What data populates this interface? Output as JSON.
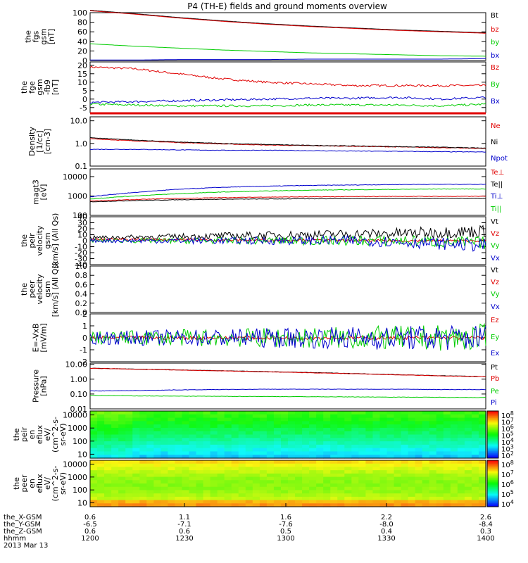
{
  "title": "P4 (TH-E) fields and ground moments overview",
  "colors": {
    "black": "#000000",
    "red": "#e00000",
    "green": "#00cc00",
    "blue": "#0000cc"
  },
  "chart_data": [
    {
      "type": "line",
      "id": "fgs",
      "ylabel": [
        "the",
        "fgs",
        "gsm",
        "[nT]"
      ],
      "ylim": [
        0,
        100
      ],
      "yticks": [
        0,
        20,
        40,
        60,
        80,
        100
      ],
      "series": [
        {
          "name": "Bt",
          "color": "red-black",
          "values": [
            105,
            98,
            90,
            83,
            77,
            72,
            68,
            64,
            61,
            58
          ]
        },
        {
          "name": "bz",
          "color": "red",
          "values": [
            104,
            97,
            89,
            82,
            76,
            71,
            67,
            63,
            60,
            57
          ]
        },
        {
          "name": "by",
          "color": "green",
          "values": [
            35,
            30,
            26,
            22,
            19,
            16,
            14,
            12,
            10,
            9
          ]
        },
        {
          "name": "bx",
          "color": "blue",
          "values": [
            1,
            1,
            2,
            2,
            2,
            3,
            3,
            3,
            3,
            4
          ]
        }
      ],
      "legend": [
        "Bt",
        "bz",
        "by",
        "bx"
      ]
    },
    {
      "type": "line",
      "id": "fge",
      "ylabel": [
        "the",
        "fge",
        "gsm",
        "-fb9",
        "[nT]"
      ],
      "ylim": [
        -8,
        22
      ],
      "yticks": [
        -5,
        0,
        5,
        10,
        15,
        20
      ],
      "series": [
        {
          "name": "Bz",
          "color": "red",
          "values": [
            19,
            18,
            15,
            12,
            10,
            9,
            8,
            8,
            8,
            8
          ]
        },
        {
          "name": "By",
          "color": "green",
          "values": [
            -3,
            -3.5,
            -4,
            -4,
            -4,
            -3.5,
            -3.5,
            -3.5,
            -4,
            -3
          ]
        },
        {
          "name": "Bx",
          "color": "blue",
          "values": [
            -2,
            -1.5,
            -1,
            -0.5,
            0,
            0.5,
            0.5,
            1,
            0,
            1
          ]
        }
      ],
      "legend": [
        "Bz",
        "By",
        "Bx"
      ]
    },
    {
      "type": "line",
      "id": "density",
      "yscale": "log",
      "ylabel": [
        "Density",
        "[1/cc]",
        "[cm-3]"
      ],
      "ylim": [
        0.1,
        15
      ],
      "yticks": [
        "0.1",
        "1.0",
        "10.0"
      ],
      "series": [
        {
          "name": "Ne",
          "color": "red",
          "values": [
            1.6,
            1.3,
            1.1,
            0.95,
            0.85,
            0.8,
            0.75,
            0.7,
            0.65,
            0.6
          ]
        },
        {
          "name": "Ni",
          "color": "black",
          "values": [
            1.8,
            1.4,
            1.15,
            1.0,
            0.9,
            0.82,
            0.78,
            0.72,
            0.68,
            0.62
          ]
        },
        {
          "name": "Npot",
          "color": "blue",
          "values": [
            0.55,
            0.55,
            0.52,
            0.5,
            0.5,
            0.48,
            0.46,
            0.45,
            0.43,
            0.42
          ]
        }
      ],
      "legend": [
        "Ne",
        "Ni",
        "Npot"
      ]
    },
    {
      "type": "line",
      "id": "temp",
      "yscale": "log",
      "ylabel": [
        "magt3",
        "[eV]"
      ],
      "ylim": [
        100,
        25000
      ],
      "yticks": [
        "100",
        "1000",
        "10000"
      ],
      "series": [
        {
          "name": "Te⊥",
          "color": "red",
          "values": [
            550,
            650,
            750,
            820,
            880,
            900,
            930,
            950,
            950,
            960
          ]
        },
        {
          "name": "Te||",
          "color": "black",
          "values": [
            500,
            580,
            640,
            680,
            700,
            720,
            740,
            740,
            750,
            750
          ]
        },
        {
          "name": "Ti⊥",
          "color": "blue",
          "values": [
            900,
            1500,
            2200,
            2800,
            3200,
            3500,
            3700,
            3900,
            4000,
            4000
          ]
        },
        {
          "name": "Ti||",
          "color": "green",
          "values": [
            700,
            1000,
            1300,
            1600,
            1800,
            2000,
            2100,
            2200,
            2300,
            2300
          ]
        }
      ],
      "legend": [
        "Te⊥",
        "Te||",
        "Ti⊥",
        "Ti||"
      ]
    },
    {
      "type": "line",
      "id": "peir_vel",
      "ylabel": [
        "the",
        "peir",
        "velocity",
        "gsm",
        "[km/s] (All Qs)"
      ],
      "ylim": [
        -40,
        40
      ],
      "yticks": [
        -40,
        -30,
        -20,
        -10,
        0,
        10,
        20,
        30,
        40
      ],
      "series": [
        {
          "name": "Vt",
          "color": "black",
          "values": [
            5,
            6,
            7,
            8,
            9,
            10,
            11,
            12,
            14,
            16
          ]
        },
        {
          "name": "Vz",
          "color": "red",
          "values": [
            2,
            2,
            2,
            1,
            1,
            1,
            0,
            0,
            0,
            0
          ]
        },
        {
          "name": "Vy",
          "color": "green",
          "values": [
            0,
            0,
            0,
            0,
            0,
            0,
            0,
            0,
            -2,
            -4
          ]
        },
        {
          "name": "Vx",
          "color": "blue",
          "values": [
            0,
            0,
            0,
            0,
            0,
            0,
            0,
            -2,
            -5,
            -8
          ]
        }
      ],
      "legend": [
        "Vt",
        "Vz",
        "Vy",
        "Vx"
      ]
    },
    {
      "type": "line",
      "id": "peer_vel",
      "ylabel": [
        "the",
        "peer",
        "velocity",
        "gsm",
        "[km/s] (All Qs)"
      ],
      "ylim": [
        0,
        1
      ],
      "yticks": [
        "0.0",
        "0.2",
        "0.4",
        "0.6",
        "0.8",
        "1.0"
      ],
      "series": [],
      "legend": [
        "Vt",
        "Vz",
        "Vy",
        "Vx"
      ]
    },
    {
      "type": "line",
      "id": "efield",
      "ylabel": [
        "E=-VxB",
        "[mV/m]"
      ],
      "ylim": [
        -2,
        2
      ],
      "yticks": [
        -2,
        -1,
        0,
        1,
        2
      ],
      "series": [
        {
          "name": "Ez",
          "color": "red",
          "values": [
            0,
            0,
            0,
            0,
            0,
            0,
            0,
            0,
            0,
            0
          ]
        },
        {
          "name": "Ey",
          "color": "green",
          "values": [
            0,
            0,
            0,
            0,
            0,
            0,
            0,
            0,
            0,
            0
          ]
        },
        {
          "name": "Ex",
          "color": "blue",
          "values": [
            0,
            0,
            0,
            0,
            0,
            0,
            0,
            0,
            0,
            0
          ]
        }
      ],
      "legend": [
        "Ez",
        "Ey",
        "Ex"
      ]
    },
    {
      "type": "line",
      "id": "pressure",
      "yscale": "log",
      "ylabel": [
        "Pressure",
        "[nPa]"
      ],
      "ylim": [
        0.01,
        12
      ],
      "yticks": [
        "0.01",
        "0.10",
        "1.00",
        "10.00"
      ],
      "series": [
        {
          "name": "Pt",
          "color": "black",
          "values": [
            5.5,
            4.8,
            4.2,
            3.7,
            3.2,
            2.8,
            2.4,
            2.0,
            1.7,
            1.5
          ]
        },
        {
          "name": "Pb",
          "color": "red",
          "values": [
            5.4,
            4.7,
            4.1,
            3.6,
            3.1,
            2.7,
            2.3,
            1.95,
            1.65,
            1.45
          ]
        },
        {
          "name": "Pe",
          "color": "green",
          "values": [
            0.08,
            0.075,
            0.072,
            0.07,
            0.068,
            0.066,
            0.064,
            0.062,
            0.06,
            0.058
          ]
        },
        {
          "name": "Pi",
          "color": "blue",
          "values": [
            0.16,
            0.17,
            0.19,
            0.2,
            0.21,
            0.21,
            0.21,
            0.21,
            0.2,
            0.2
          ]
        }
      ],
      "legend": [
        "Pt",
        "Pb",
        "Pe",
        "Pi"
      ]
    },
    {
      "type": "heatmap",
      "id": "peir_spec",
      "yscale": "log",
      "ylabel": [
        "the",
        "peir",
        "en",
        "eflux",
        "eV/",
        "(cm^2-s-",
        "sr-eV)"
      ],
      "yticks": [
        "10",
        "100",
        "1000",
        "10000"
      ],
      "colorbar": [
        "10",
        "10",
        "10",
        "10",
        "10",
        "10",
        "10"
      ],
      "colorbar_exp": [
        "8",
        "7",
        "6",
        "5",
        "4",
        "3",
        "2"
      ]
    },
    {
      "type": "heatmap",
      "id": "peer_spec",
      "yscale": "log",
      "ylabel": [
        "the",
        "peer",
        "en",
        "eflux",
        "eV/",
        "(cm^2-s-",
        "sr-eV)"
      ],
      "yticks": [
        "10",
        "100",
        "1000",
        "10000"
      ],
      "colorbar": [
        "10",
        "10",
        "10",
        "10",
        "10"
      ],
      "colorbar_exp": [
        "8",
        "7",
        "6",
        "5",
        "4"
      ]
    }
  ],
  "xaxis": {
    "rows": [
      {
        "label": "the_X-GSM",
        "values": [
          "0.6",
          "1.1",
          "1.6",
          "2.2",
          "2.6"
        ]
      },
      {
        "label": "the_Y-GSM",
        "values": [
          "-6.5",
          "-7.1",
          "-7.6",
          "-8.0",
          "-8.4"
        ]
      },
      {
        "label": "the_Z-GSM",
        "values": [
          "0.6",
          "0.6",
          "0.5",
          "0.4",
          "0.3"
        ]
      },
      {
        "label": "hhmm",
        "values": [
          "1200",
          "1230",
          "1300",
          "1330",
          "1400"
        ]
      }
    ],
    "date": "2013 Mar 13"
  }
}
